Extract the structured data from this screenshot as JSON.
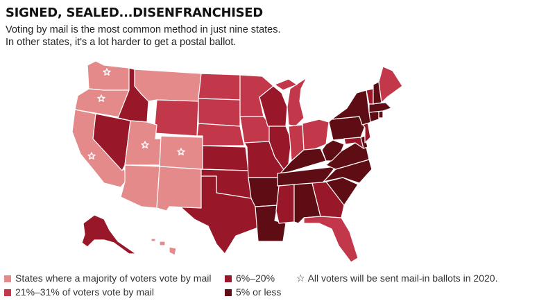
{
  "header": {
    "title": "SIGNED, SEALED...DISENFRANCHISED",
    "subtitle_line1": "Voting by mail is the most common method in just nine states.",
    "subtitle_line2": "In other states, it's a lot harder to get a postal ballot."
  },
  "colors": {
    "majority": "#e58a8a",
    "range_21_31": "#c2384a",
    "range_6_20": "#98182a",
    "five_or_less": "#5e0d14",
    "border": "#ffffff"
  },
  "legend": {
    "majority": "States where a majority of voters vote by mail",
    "range_21_31": "21%–31% of voters vote by mail",
    "range_6_20": "6%–20%",
    "five_or_less": "5% or less",
    "star_symbol": "☆",
    "star_label": "All voters will be sent mail-in ballots in 2020."
  },
  "map": {
    "states": [
      {
        "abbr": "WA",
        "category": "majority",
        "star": true
      },
      {
        "abbr": "OR",
        "category": "majority",
        "star": true
      },
      {
        "abbr": "CA",
        "category": "majority",
        "star": true
      },
      {
        "abbr": "NV",
        "category": "range_6_20",
        "star": false
      },
      {
        "abbr": "ID",
        "category": "range_6_20",
        "star": false
      },
      {
        "abbr": "MT",
        "category": "majority",
        "star": false
      },
      {
        "abbr": "WY",
        "category": "range_21_31",
        "star": false
      },
      {
        "abbr": "UT",
        "category": "majority",
        "star": true
      },
      {
        "abbr": "CO",
        "category": "majority",
        "star": true
      },
      {
        "abbr": "AZ",
        "category": "majority",
        "star": false
      },
      {
        "abbr": "NM",
        "category": "majority",
        "star": false
      },
      {
        "abbr": "ND",
        "category": "range_21_31",
        "star": false
      },
      {
        "abbr": "SD",
        "category": "range_21_31",
        "star": false
      },
      {
        "abbr": "NE",
        "category": "range_21_31",
        "star": false
      },
      {
        "abbr": "KS",
        "category": "range_6_20",
        "star": false
      },
      {
        "abbr": "OK",
        "category": "range_6_20",
        "star": false
      },
      {
        "abbr": "TX",
        "category": "range_6_20",
        "star": false
      },
      {
        "abbr": "MN",
        "category": "range_21_31",
        "star": false
      },
      {
        "abbr": "IA",
        "category": "range_21_31",
        "star": false
      },
      {
        "abbr": "MO",
        "category": "range_6_20",
        "star": false
      },
      {
        "abbr": "AR",
        "category": "five_or_less",
        "star": false
      },
      {
        "abbr": "LA",
        "category": "five_or_less",
        "star": false
      },
      {
        "abbr": "WI",
        "category": "range_6_20",
        "star": false
      },
      {
        "abbr": "IL",
        "category": "range_6_20",
        "star": false
      },
      {
        "abbr": "MI",
        "category": "range_21_31",
        "star": false
      },
      {
        "abbr": "IN",
        "category": "range_21_31",
        "star": false
      },
      {
        "abbr": "OH",
        "category": "range_21_31",
        "star": false
      },
      {
        "abbr": "KY",
        "category": "five_or_less",
        "star": false
      },
      {
        "abbr": "TN",
        "category": "five_or_less",
        "star": false
      },
      {
        "abbr": "MS",
        "category": "range_6_20",
        "star": false
      },
      {
        "abbr": "AL",
        "category": "five_or_less",
        "star": false
      },
      {
        "abbr": "GA",
        "category": "range_6_20",
        "star": false
      },
      {
        "abbr": "FL",
        "category": "range_21_31",
        "star": false
      },
      {
        "abbr": "SC",
        "category": "five_or_less",
        "star": false
      },
      {
        "abbr": "NC",
        "category": "five_or_less",
        "star": false
      },
      {
        "abbr": "VA",
        "category": "five_or_less",
        "star": false
      },
      {
        "abbr": "WV",
        "category": "five_or_less",
        "star": false
      },
      {
        "abbr": "MD",
        "category": "range_6_20",
        "star": false
      },
      {
        "abbr": "DE",
        "category": "five_or_less",
        "star": false
      },
      {
        "abbr": "PA",
        "category": "five_or_less",
        "star": false
      },
      {
        "abbr": "NJ",
        "category": "range_6_20",
        "star": false
      },
      {
        "abbr": "NY",
        "category": "five_or_less",
        "star": false
      },
      {
        "abbr": "CT",
        "category": "five_or_less",
        "star": false
      },
      {
        "abbr": "RI",
        "category": "five_or_less",
        "star": false
      },
      {
        "abbr": "MA",
        "category": "five_or_less",
        "star": false
      },
      {
        "abbr": "VT",
        "category": "range_6_20",
        "star": false
      },
      {
        "abbr": "NH",
        "category": "five_or_less",
        "star": false
      },
      {
        "abbr": "ME",
        "category": "range_21_31",
        "star": false
      },
      {
        "abbr": "AK",
        "category": "range_6_20",
        "star": false
      },
      {
        "abbr": "HI",
        "category": "majority",
        "star": false
      }
    ]
  }
}
